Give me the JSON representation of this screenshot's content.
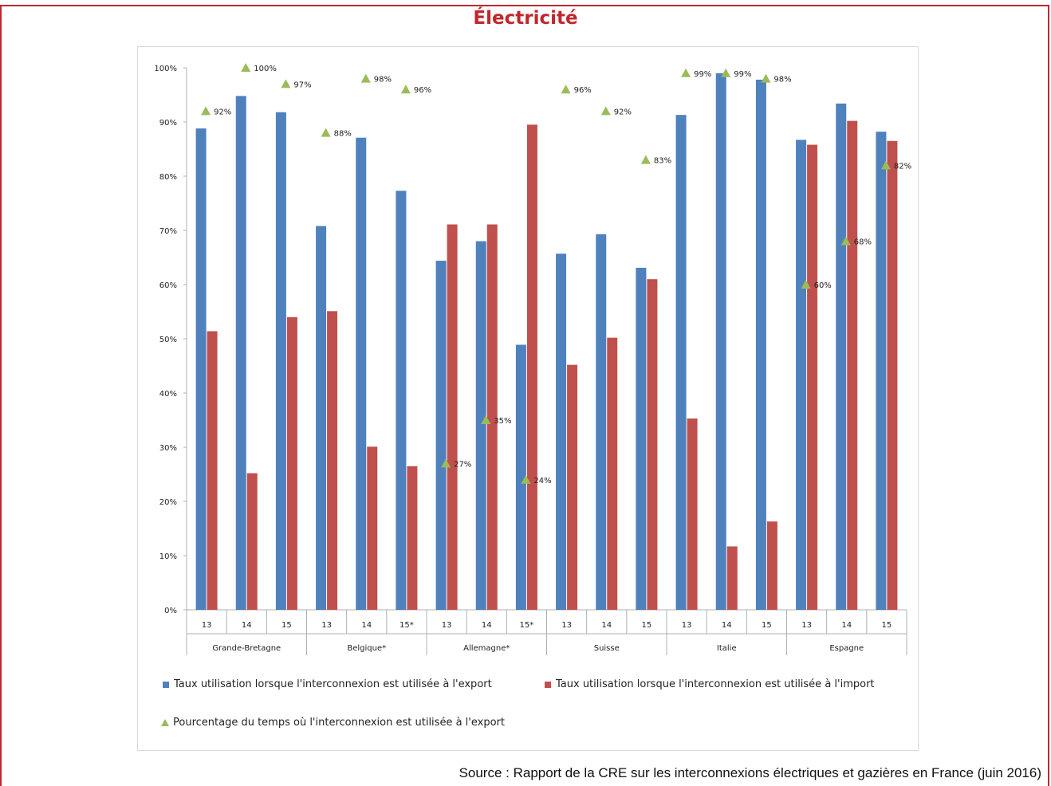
{
  "page": {
    "title": "Électricité",
    "source": "Source : Rapport de la CRE sur les interconnexions électriques et gazières en France (juin 2016)",
    "colors": {
      "accent": "#c0272d",
      "export": "#4f81bd",
      "import": "#c0504d",
      "pct": "#9bbb59"
    }
  },
  "chart_data": {
    "type": "bar",
    "title": "Électricité",
    "ylim": [
      0,
      100
    ],
    "yticks": [
      "0%",
      "10%",
      "20%",
      "30%",
      "40%",
      "50%",
      "60%",
      "70%",
      "80%",
      "90%",
      "100%"
    ],
    "groups": [
      {
        "label": "Grande-Bretagne",
        "years": [
          "13",
          "14",
          "15"
        ]
      },
      {
        "label": "Belgique*",
        "years": [
          "13",
          "14",
          "15*"
        ]
      },
      {
        "label": "Allemagne*",
        "years": [
          "13",
          "14",
          "15*"
        ]
      },
      {
        "label": "Suisse",
        "years": [
          "13",
          "14",
          "15"
        ]
      },
      {
        "label": "Italie",
        "years": [
          "13",
          "14",
          "15"
        ]
      },
      {
        "label": "Espagne",
        "years": [
          "13",
          "14",
          "15"
        ]
      }
    ],
    "series": [
      {
        "name": "Taux utilisation lorsque l'interconnexion est utilisée à l'export",
        "kind": "bar",
        "values": [
          88.8,
          94.8,
          91.8,
          70.8,
          87.1,
          77.3,
          64.4,
          68.0,
          48.9,
          65.7,
          69.3,
          63.1,
          91.3,
          99.0,
          97.8,
          86.7,
          93.4,
          88.2
        ]
      },
      {
        "name": "Taux utilisation lorsque l'interconnexion est utilisée à l'import",
        "kind": "bar",
        "values": [
          51.4,
          25.2,
          54.0,
          55.1,
          30.1,
          26.5,
          71.1,
          71.1,
          89.5,
          45.2,
          50.2,
          61.0,
          35.3,
          11.7,
          16.3,
          85.8,
          90.2,
          86.5
        ]
      },
      {
        "name": "Pourcentage du temps où l'interconnexion est utilisée à l'export",
        "kind": "marker",
        "values": [
          92,
          100,
          97,
          88,
          98,
          96,
          27,
          35,
          24,
          96,
          92,
          83,
          99,
          99,
          98,
          60,
          68,
          82
        ],
        "labels": [
          "92%",
          "100%",
          "97%",
          "88%",
          "98%",
          "96%",
          "27%",
          "35%",
          "24%",
          "96%",
          "92%",
          "83%",
          "99%",
          "99%",
          "98%",
          "60%",
          "68%",
          "82%"
        ]
      }
    ],
    "legend_position": "bottom",
    "grid": false
  }
}
